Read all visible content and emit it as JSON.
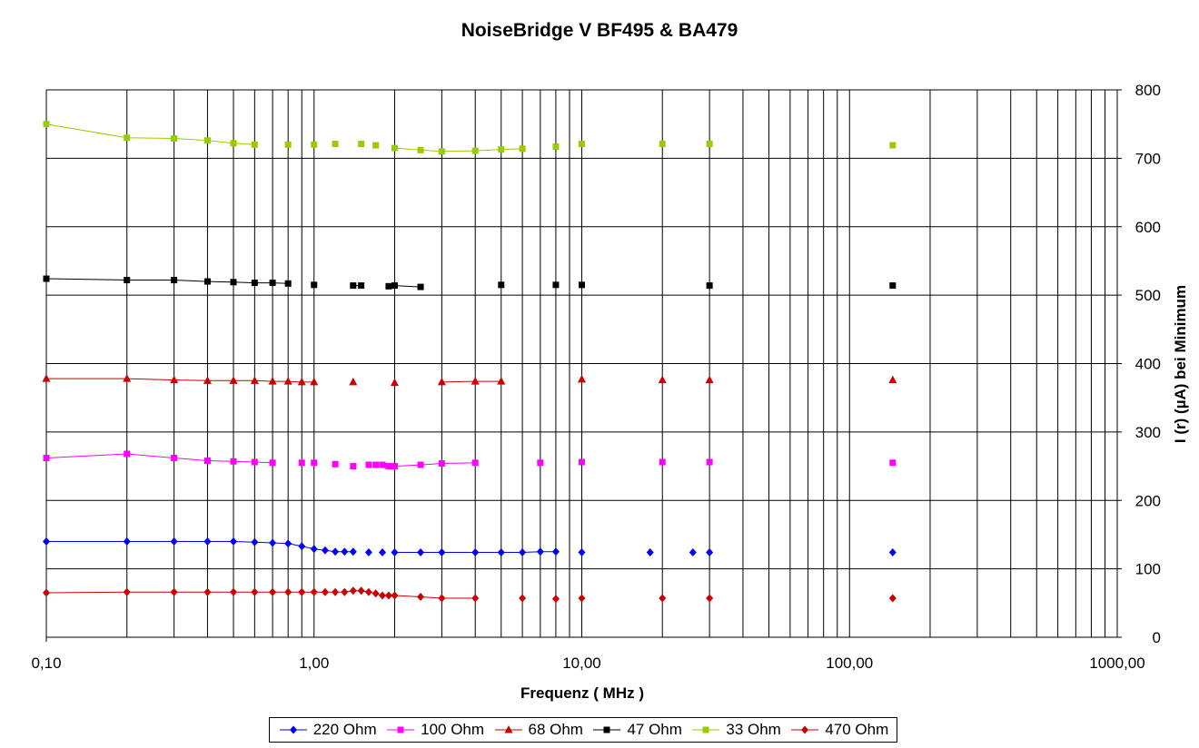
{
  "chart_data": {
    "type": "line",
    "title": "NoiseBridge V BF495 & BA479",
    "xlabel": "Frequenz ( MHz )",
    "ylabel": "I (r) (µA) bei Minimum",
    "x_scale": "log",
    "xlim": [
      0.1,
      1000
    ],
    "ylim": [
      0,
      800
    ],
    "x_ticks": [
      0.1,
      1,
      10,
      100,
      1000
    ],
    "x_tick_labels": [
      "0,10",
      "1,00",
      "10,00",
      "100,00",
      "1000,00"
    ],
    "y_ticks": [
      0,
      100,
      200,
      300,
      400,
      500,
      600,
      700,
      800
    ],
    "y_tick_labels": [
      "0",
      "100",
      "200",
      "300",
      "400",
      "500",
      "600",
      "700",
      "800"
    ],
    "y_axis_side": "right",
    "grid": true,
    "legend_position": "bottom",
    "series": [
      {
        "name": "220 Ohm",
        "color": "#0000ff",
        "marker": "diamond",
        "segments": [
          [
            [
              0.1,
              140
            ],
            [
              0.2,
              140
            ],
            [
              0.3,
              140
            ],
            [
              0.4,
              140
            ],
            [
              0.5,
              140
            ],
            [
              0.6,
              139
            ],
            [
              0.7,
              138
            ],
            [
              0.8,
              137
            ],
            [
              0.9,
              133
            ],
            [
              1.0,
              129
            ],
            [
              1.1,
              127
            ],
            [
              1.2,
              125
            ],
            [
              1.3,
              125
            ],
            [
              1.4,
              125
            ]
          ],
          [
            [
              2.0,
              124
            ],
            [
              2.5,
              124
            ],
            [
              3.0,
              124
            ],
            [
              4.0,
              124
            ],
            [
              5.0,
              124
            ],
            [
              6.0,
              124
            ],
            [
              7.0,
              125
            ],
            [
              8.0,
              125
            ]
          ]
        ],
        "points": [
          [
            1.6,
            124
          ],
          [
            1.8,
            124
          ],
          [
            10,
            124
          ],
          [
            18,
            124
          ],
          [
            26,
            124
          ],
          [
            30,
            124
          ],
          [
            145,
            124
          ]
        ]
      },
      {
        "name": "100 Ohm",
        "color": "#ff00ff",
        "marker": "square",
        "segments": [
          [
            [
              0.1,
              262
            ],
            [
              0.2,
              268
            ],
            [
              0.3,
              262
            ],
            [
              0.4,
              258
            ],
            [
              0.5,
              257
            ],
            [
              0.6,
              256
            ],
            [
              0.7,
              255
            ]
          ],
          [
            [
              2.0,
              250
            ],
            [
              2.5,
              252
            ],
            [
              3.0,
              254
            ],
            [
              4.0,
              255
            ]
          ]
        ],
        "points": [
          [
            0.9,
            255
          ],
          [
            1.0,
            255
          ],
          [
            1.2,
            253
          ],
          [
            1.4,
            250
          ],
          [
            1.6,
            252
          ],
          [
            1.7,
            252
          ],
          [
            1.8,
            252
          ],
          [
            1.9,
            250
          ],
          [
            7.0,
            255
          ],
          [
            10,
            256
          ],
          [
            20,
            256
          ],
          [
            30,
            256
          ],
          [
            145,
            255
          ]
        ]
      },
      {
        "name": "68 Ohm",
        "color": "#cc0000",
        "marker": "triangle",
        "segments": [
          [
            [
              0.1,
              378
            ],
            [
              0.2,
              378
            ],
            [
              0.3,
              376
            ],
            [
              0.4,
              375
            ],
            [
              0.5,
              375
            ],
            [
              0.6,
              375
            ],
            [
              0.7,
              374
            ],
            [
              0.8,
              374
            ],
            [
              0.9,
              373
            ],
            [
              1.0,
              373
            ]
          ],
          [
            [
              3.0,
              373
            ],
            [
              4.0,
              374
            ],
            [
              5.0,
              374
            ]
          ]
        ],
        "points": [
          [
            1.4,
            373
          ],
          [
            2.0,
            372
          ],
          [
            10,
            377
          ],
          [
            20,
            376
          ],
          [
            30,
            376
          ],
          [
            145,
            376
          ]
        ]
      },
      {
        "name": "47 Ohm",
        "color": "#000000",
        "marker": "square",
        "segments": [
          [
            [
              0.1,
              524
            ],
            [
              0.2,
              522
            ],
            [
              0.3,
              522
            ],
            [
              0.4,
              520
            ],
            [
              0.5,
              519
            ],
            [
              0.6,
              518
            ],
            [
              0.7,
              518
            ],
            [
              0.8,
              517
            ]
          ],
          [
            [
              1.4,
              514
            ],
            [
              1.5,
              514
            ]
          ],
          [
            [
              1.9,
              513
            ],
            [
              2.0,
              514
            ],
            [
              2.5,
              512
            ]
          ]
        ],
        "points": [
          [
            1.0,
            515
          ],
          [
            5.0,
            515
          ],
          [
            8.0,
            515
          ],
          [
            10,
            515
          ],
          [
            30,
            514
          ],
          [
            145,
            514
          ]
        ]
      },
      {
        "name": "33 Ohm",
        "color": "#99cc00",
        "marker": "square",
        "segments": [
          [
            [
              0.1,
              750
            ],
            [
              0.2,
              730
            ],
            [
              0.3,
              729
            ],
            [
              0.4,
              726
            ],
            [
              0.5,
              722
            ],
            [
              0.6,
              720
            ]
          ],
          [
            [
              2.0,
              715
            ],
            [
              2.5,
              712
            ],
            [
              3.0,
              710
            ],
            [
              4.0,
              711
            ],
            [
              5.0,
              713
            ],
            [
              6.0,
              714
            ]
          ]
        ],
        "points": [
          [
            0.8,
            720
          ],
          [
            1.0,
            720
          ],
          [
            1.2,
            721
          ],
          [
            1.5,
            721
          ],
          [
            1.7,
            719
          ],
          [
            8.0,
            717
          ],
          [
            10,
            721
          ],
          [
            20,
            721
          ],
          [
            30,
            721
          ],
          [
            145,
            719
          ]
        ]
      },
      {
        "name": "470 Ohm",
        "color": "#cc0000",
        "marker": "diamond",
        "segments": [
          [
            [
              0.1,
              65
            ],
            [
              0.2,
              66
            ],
            [
              0.3,
              66
            ],
            [
              0.4,
              66
            ],
            [
              0.5,
              66
            ],
            [
              0.6,
              66
            ],
            [
              0.7,
              66
            ],
            [
              0.8,
              66
            ],
            [
              0.9,
              66
            ],
            [
              1.0,
              66
            ],
            [
              1.1,
              66
            ],
            [
              1.2,
              66
            ],
            [
              1.3,
              66
            ],
            [
              1.4,
              68
            ],
            [
              1.5,
              68
            ],
            [
              1.6,
              66
            ],
            [
              1.7,
              64
            ],
            [
              1.8,
              61
            ],
            [
              1.9,
              61
            ],
            [
              2.0,
              61
            ],
            [
              2.5,
              59
            ],
            [
              3.0,
              57
            ],
            [
              4.0,
              57
            ]
          ]
        ],
        "points": [
          [
            6.0,
            57
          ],
          [
            8.0,
            56
          ],
          [
            10,
            57
          ],
          [
            20,
            57
          ],
          [
            30,
            57
          ],
          [
            145,
            57
          ]
        ]
      }
    ]
  }
}
